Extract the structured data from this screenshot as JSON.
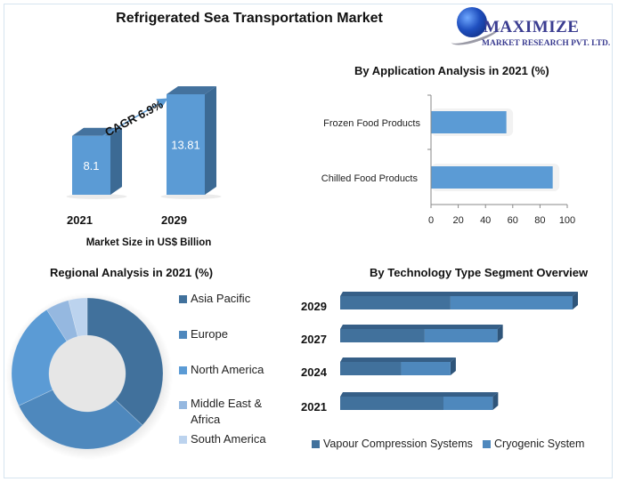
{
  "header": {
    "title": "Refrigerated Sea Transportation Market",
    "logo": {
      "name": "MAXIMIZE",
      "subtitle": "MARKET RESEARCH PVT. LTD.",
      "icon": "globe-icon"
    }
  },
  "colors": {
    "bar_front": "#5b9bd5",
    "bar_side": "#3c6a94",
    "bar_top": "#44729e",
    "asia_pacific": "#41719c",
    "europe": "#4e88bd",
    "north_america": "#5b9bd5",
    "middle_east_africa": "#95b8e0",
    "south_america": "#bcd3ee",
    "vapour": "#41719c",
    "cryogenic": "#4e88bd"
  },
  "chart_data": [
    {
      "id": "market-size",
      "type": "bar",
      "title": "",
      "xlabel": "Market Size in US$ Billion",
      "ylabel": "",
      "categories": [
        "2021",
        "2029"
      ],
      "values": [
        8.1,
        13.81
      ],
      "value_labels": [
        "8.1",
        "13.81"
      ],
      "annotation": "CAGR 6.9%",
      "ylim": [
        0,
        15
      ],
      "grid": false
    },
    {
      "id": "application",
      "type": "bar",
      "orientation": "horizontal",
      "title": "By Application Analysis in 2021 (%)",
      "categories": [
        "Frozen Food Products",
        "Chilled Food Products"
      ],
      "values": [
        55,
        89
      ],
      "xlim": [
        0,
        100
      ],
      "xticks": [
        "0",
        "20",
        "40",
        "60",
        "80",
        "100"
      ],
      "grid": false
    },
    {
      "id": "regional",
      "type": "pie",
      "variant": "donut",
      "title": "Regional Analysis in 2021 (%)",
      "labels": [
        "Asia Pacific",
        "Europe",
        "North America",
        "Middle East & Africa",
        "South America"
      ],
      "legend_labels": [
        "Asia Pacific",
        "Europe",
        "North America",
        "Middle East &",
        "Africa",
        "South America"
      ],
      "values": [
        37,
        31,
        23,
        5,
        4
      ],
      "legend": "right"
    },
    {
      "id": "technology",
      "type": "bar",
      "orientation": "horizontal",
      "stacked": true,
      "title": "By Technology Type Segment Overview",
      "categories": [
        "2029",
        "2027",
        "2024",
        "2021"
      ],
      "series": [
        {
          "name": "Vapour Compression Systems",
          "values": [
            4.7,
            3.6,
            2.6,
            4.4
          ]
        },
        {
          "name": "Cryogenic System",
          "values": [
            5.2,
            3.1,
            2.1,
            2.1
          ]
        }
      ],
      "legend": "bottom",
      "grid": false
    }
  ]
}
